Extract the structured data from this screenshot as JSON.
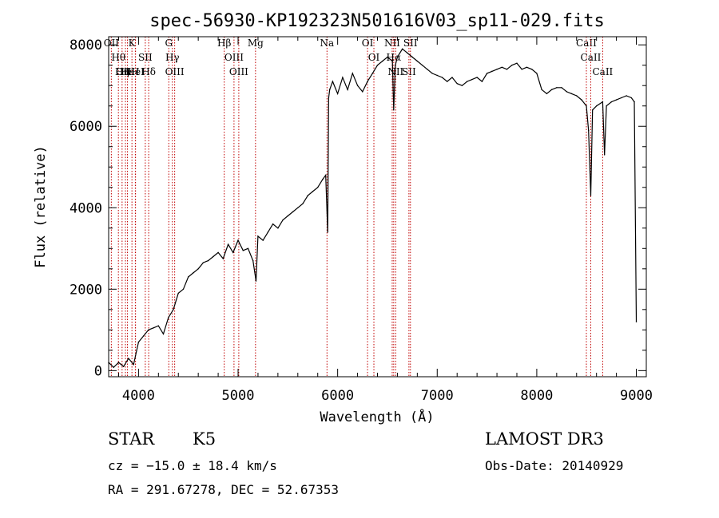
{
  "chart_data": {
    "type": "line",
    "title": "spec-56930-KP192323N501616V03_sp11-029.fits",
    "xlabel": "Wavelength (Å)",
    "ylabel": "Flux (relative)",
    "xlim": [
      3700,
      9100
    ],
    "ylim": [
      -150,
      8200
    ],
    "x_ticks": [
      4000,
      5000,
      6000,
      7000,
      8000,
      9000
    ],
    "y_ticks": [
      0,
      2000,
      4000,
      6000,
      8000
    ],
    "series": [
      {
        "x": [
          3700,
          3750,
          3800,
          3850,
          3900,
          3950,
          4000,
          4050,
          4100,
          4150,
          4200,
          4250,
          4300,
          4350,
          4400,
          4450,
          4500,
          4550,
          4600,
          4650,
          4700,
          4750,
          4800,
          4850,
          4900,
          4950,
          5000,
          5050,
          5100,
          5150,
          5180,
          5200,
          5250,
          5300,
          5350,
          5400,
          5450,
          5500,
          5550,
          5600,
          5650,
          5700,
          5750,
          5800,
          5850,
          5880,
          5900,
          5910,
          5920,
          5950,
          6000,
          6050,
          6100,
          6150,
          6200,
          6250,
          6300,
          6350,
          6400,
          6450,
          6500,
          6550,
          6563,
          6580,
          6600,
          6650,
          6700,
          6750,
          6800,
          6850,
          6900,
          6950,
          7000,
          7050,
          7100,
          7150,
          7200,
          7250,
          7300,
          7350,
          7400,
          7450,
          7500,
          7550,
          7600,
          7650,
          7700,
          7750,
          7800,
          7850,
          7900,
          7950,
          8000,
          8050,
          8100,
          8150,
          8200,
          8250,
          8300,
          8350,
          8400,
          8450,
          8498,
          8520,
          8542,
          8560,
          8600,
          8662,
          8680,
          8700,
          8750,
          8800,
          8850,
          8900,
          8950,
          8980,
          9000
        ],
        "y": [
          200,
          80,
          200,
          100,
          300,
          150,
          700,
          850,
          1000,
          1050,
          1100,
          900,
          1300,
          1500,
          1900,
          2000,
          2300,
          2400,
          2500,
          2650,
          2700,
          2800,
          2900,
          2750,
          3100,
          2900,
          3200,
          2950,
          3000,
          2700,
          2200,
          3300,
          3200,
          3400,
          3600,
          3500,
          3700,
          3800,
          3900,
          4000,
          4100,
          4300,
          4400,
          4500,
          4700,
          4800,
          3400,
          6700,
          6900,
          7100,
          6800,
          7200,
          6900,
          7300,
          7000,
          6850,
          7100,
          7300,
          7500,
          7600,
          7700,
          7600,
          6400,
          7500,
          7700,
          7900,
          7800,
          7700,
          7600,
          7500,
          7400,
          7300,
          7250,
          7200,
          7100,
          7200,
          7050,
          7000,
          7100,
          7150,
          7200,
          7100,
          7300,
          7350,
          7400,
          7450,
          7400,
          7500,
          7550,
          7400,
          7450,
          7400,
          7300,
          6900,
          6800,
          6900,
          6950,
          6950,
          6850,
          6800,
          6750,
          6650,
          6500,
          5900,
          4300,
          6400,
          6500,
          6600,
          5300,
          6500,
          6600,
          6650,
          6700,
          6750,
          6700,
          6600,
          1200
        ]
      }
    ],
    "lines": [
      {
        "name": "Hθ",
        "wl": 3798
      },
      {
        "name": "OII",
        "wl": 3727
      },
      {
        "name": "OIII",
        "wl": 3869
      },
      {
        "name": "Hε",
        "wl": 3889
      },
      {
        "name": "HeI",
        "wl": 3970
      },
      {
        "name": "Hη",
        "wl": 3835
      },
      {
        "name": "K",
        "wl": 3934
      },
      {
        "name": "H",
        "wl": 3968
      },
      {
        "name": "SII",
        "wl": 4068
      },
      {
        "name": "Hδ",
        "wl": 4102
      },
      {
        "name": "OIII",
        "wl": 4363
      },
      {
        "name": "Hγ",
        "wl": 4340
      },
      {
        "name": "G",
        "wl": 4304
      },
      {
        "name": "Hβ",
        "wl": 4861
      },
      {
        "name": "OIII",
        "wl": 4959
      },
      {
        "name": "OIII",
        "wl": 5007
      },
      {
        "name": "Mg",
        "wl": 5175
      },
      {
        "name": "Na",
        "wl": 5893
      },
      {
        "name": "OI",
        "wl": 6300
      },
      {
        "name": "OI",
        "wl": 6364
      },
      {
        "name": "Hα",
        "wl": 6563
      },
      {
        "name": "NII",
        "wl": 6548
      },
      {
        "name": "NII",
        "wl": 6583
      },
      {
        "name": "SII",
        "wl": 6716
      },
      {
        "name": "SII",
        "wl": 6731
      },
      {
        "name": "CaII",
        "wl": 8498
      },
      {
        "name": "CaII",
        "wl": 8542
      },
      {
        "name": "CaII",
        "wl": 8662
      }
    ]
  },
  "footer": {
    "object_class": "STAR",
    "subclass": "K5",
    "survey": "LAMOST DR3",
    "cz": "cz = −15.0 ± 18.4 km/s",
    "obs_date": "Obs-Date: 20140929",
    "radec": "RA = 291.67278, DEC =  52.67353"
  }
}
